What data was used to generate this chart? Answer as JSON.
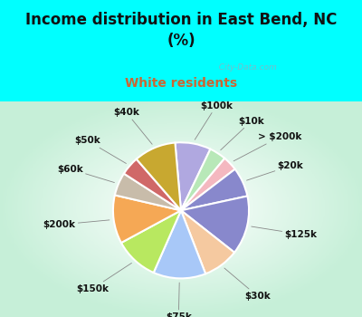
{
  "title": "Income distribution in East Bend, NC\n(%)",
  "subtitle": "White residents",
  "bg_color": "#00FFFF",
  "chart_bg_top": "#ffffff",
  "chart_bg_bottom": "#c8f0d8",
  "labels": [
    "$100k",
    "$10k",
    "> $200k",
    "$20k",
    "$125k",
    "$30k",
    "$75k",
    "$150k",
    "$200k",
    "$60k",
    "$50k",
    "$40k"
  ],
  "values": [
    8.5,
    4.0,
    3.5,
    7.0,
    14.0,
    8.5,
    12.5,
    10.5,
    11.5,
    5.5,
    4.5,
    10.0
  ],
  "colors": [
    "#b0a8e0",
    "#b8e8b8",
    "#f4b8c0",
    "#8888cc",
    "#8888cc",
    "#f5c9a0",
    "#a8c8f8",
    "#b8e860",
    "#f5a855",
    "#c8bcaa",
    "#d06868",
    "#c8a830"
  ],
  "title_fontsize": 12,
  "subtitle_color": "#cc6633",
  "subtitle_fontsize": 10,
  "watermark": "  City-Data.com",
  "label_fontsize": 7.5,
  "wedge_linewidth": 1.5
}
